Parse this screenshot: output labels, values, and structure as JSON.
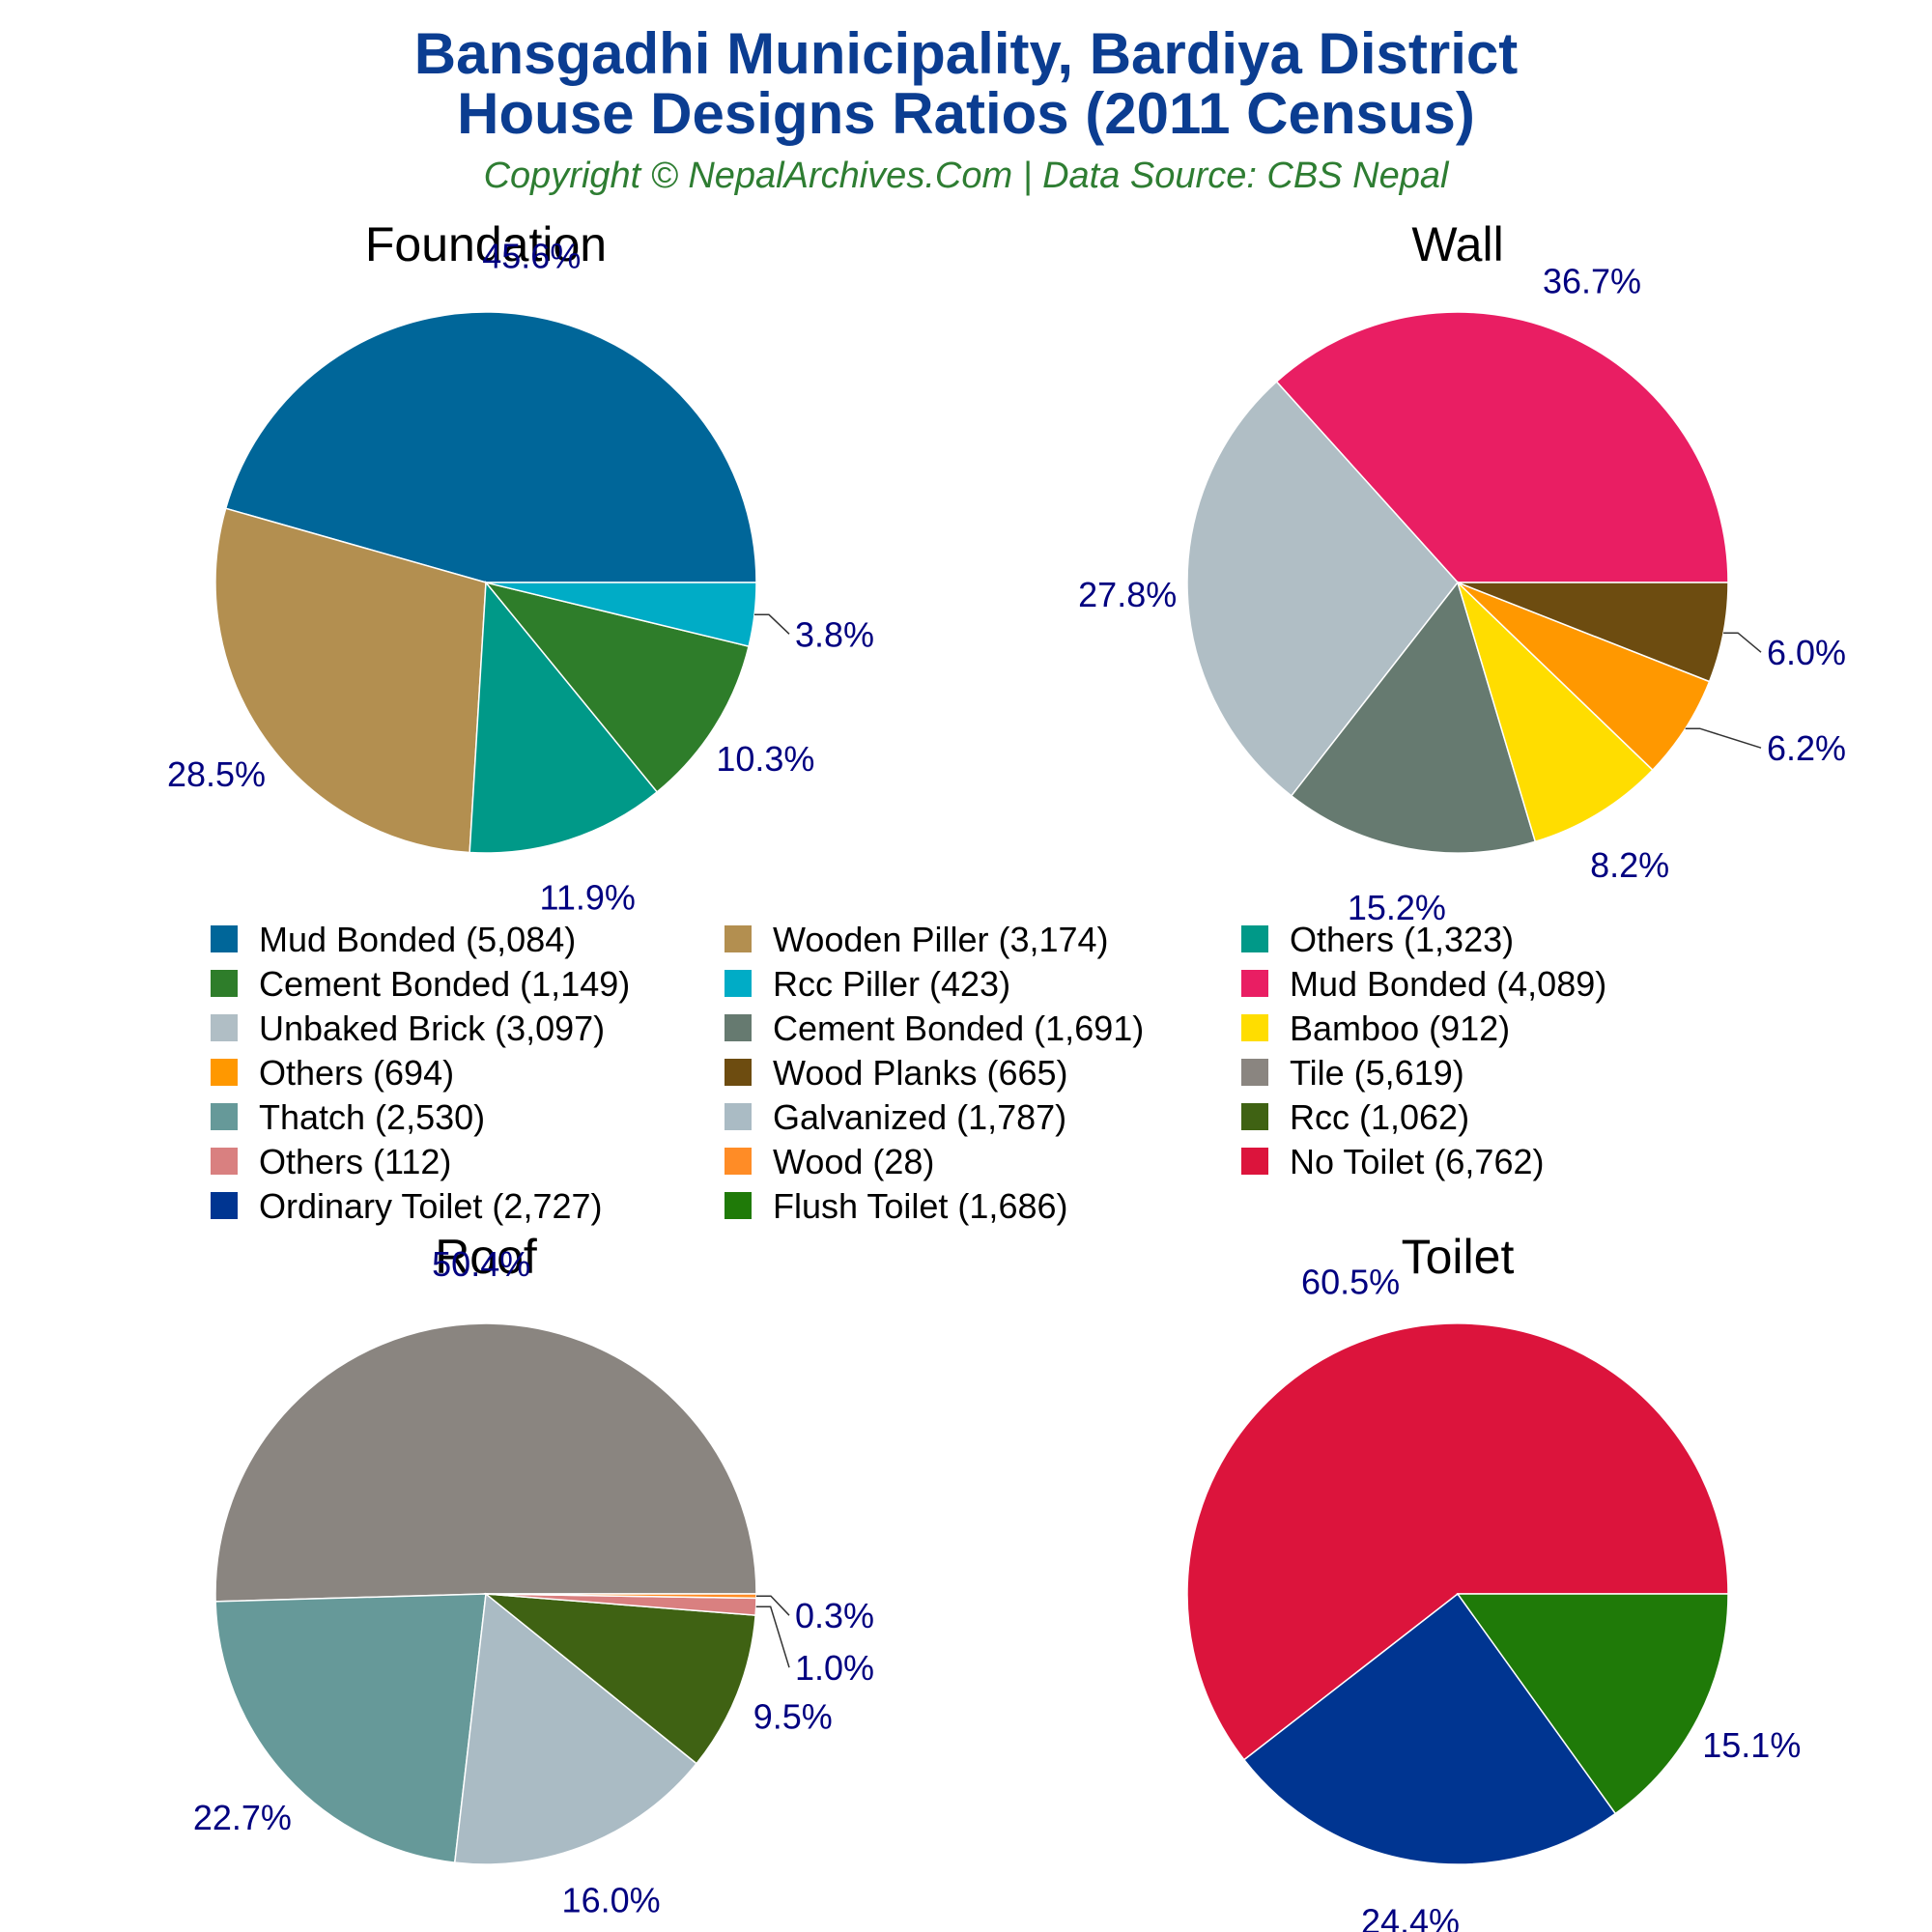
{
  "header": {
    "title_line1": "Bansgadhi Municipality, Bardiya District",
    "title_line2": "House Designs Ratios (2011 Census)",
    "subtitle": "Copyright © NepalArchives.Com | Data Source: CBS Nepal"
  },
  "chart_data": [
    {
      "type": "pie",
      "title": "Foundation",
      "slices": [
        {
          "label": "Mud Bonded",
          "value": 5084,
          "percent_label": "45.6%",
          "color": "#006699"
        },
        {
          "label": "Wooden Piller",
          "value": 3174,
          "percent_label": "28.5%",
          "color": "#b38f50"
        },
        {
          "label": "Others",
          "value": 1323,
          "percent_label": "11.9%",
          "color": "#009988"
        },
        {
          "label": "Cement Bonded",
          "value": 1149,
          "percent_label": "10.3%",
          "color": "#2e7d2a"
        },
        {
          "label": "Rcc Piller",
          "value": 423,
          "percent_label": "3.8%",
          "color": "#00acc6"
        }
      ]
    },
    {
      "type": "pie",
      "title": "Wall",
      "slices": [
        {
          "label": "Mud Bonded",
          "value": 4089,
          "percent_label": "36.7%",
          "color": "#e91e63"
        },
        {
          "label": "Unbaked Brick",
          "value": 3097,
          "percent_label": "27.8%",
          "color": "#b0bec5"
        },
        {
          "label": "Cement Bonded",
          "value": 1691,
          "percent_label": "15.2%",
          "color": "#667a70"
        },
        {
          "label": "Bamboo",
          "value": 912,
          "percent_label": "8.2%",
          "color": "#ffdd00"
        },
        {
          "label": "Others",
          "value": 694,
          "percent_label": "6.2%",
          "color": "#ff9800"
        },
        {
          "label": "Wood Planks",
          "value": 665,
          "percent_label": "6.0%",
          "color": "#6d4c10"
        }
      ]
    },
    {
      "type": "pie",
      "title": "Roof",
      "slices": [
        {
          "label": "Tile",
          "value": 5619,
          "percent_label": "50.4%",
          "color": "#8a8580"
        },
        {
          "label": "Thatch",
          "value": 2530,
          "percent_label": "22.7%",
          "color": "#669999"
        },
        {
          "label": "Galvanized",
          "value": 1787,
          "percent_label": "16.0%",
          "color": "#aabbc4"
        },
        {
          "label": "Rcc",
          "value": 1062,
          "percent_label": "9.5%",
          "color": "#3f6213"
        },
        {
          "label": "Others",
          "value": 112,
          "percent_label": "1.0%",
          "color": "#d98080"
        },
        {
          "label": "Wood",
          "value": 28,
          "percent_label": "0.3%",
          "color": "#ff8c26"
        }
      ]
    },
    {
      "type": "pie",
      "title": "Toilet",
      "slices": [
        {
          "label": "No Toilet",
          "value": 6762,
          "percent_label": "60.5%",
          "color": "#dc143c"
        },
        {
          "label": "Ordinary Toilet",
          "value": 2727,
          "percent_label": "24.4%",
          "color": "#003591"
        },
        {
          "label": "Flush Toilet",
          "value": 1686,
          "percent_label": "15.1%",
          "color": "#1f7a08"
        }
      ]
    }
  ],
  "legend": {
    "items": [
      {
        "text": "Mud Bonded (5,084)",
        "color": "#006699"
      },
      {
        "text": "Wooden Piller (3,174)",
        "color": "#b38f50"
      },
      {
        "text": "Others (1,323)",
        "color": "#009988"
      },
      {
        "text": "Cement Bonded (1,149)",
        "color": "#2e7d2a"
      },
      {
        "text": "Rcc Piller (423)",
        "color": "#00acc6"
      },
      {
        "text": "Mud Bonded (4,089)",
        "color": "#e91e63"
      },
      {
        "text": "Unbaked Brick (3,097)",
        "color": "#b0bec5"
      },
      {
        "text": "Cement Bonded (1,691)",
        "color": "#667a70"
      },
      {
        "text": "Bamboo (912)",
        "color": "#ffdd00"
      },
      {
        "text": "Others (694)",
        "color": "#ff9800"
      },
      {
        "text": "Wood Planks (665)",
        "color": "#6d4c10"
      },
      {
        "text": "Tile (5,619)",
        "color": "#8a8580"
      },
      {
        "text": "Thatch (2,530)",
        "color": "#669999"
      },
      {
        "text": "Galvanized (1,787)",
        "color": "#aabbc4"
      },
      {
        "text": "Rcc (1,062)",
        "color": "#3f6213"
      },
      {
        "text": "Others (112)",
        "color": "#d98080"
      },
      {
        "text": "Wood (28)",
        "color": "#ff8c26"
      },
      {
        "text": "No Toilet (6,762)",
        "color": "#dc143c"
      },
      {
        "text": "Ordinary Toilet (2,727)",
        "color": "#003591"
      },
      {
        "text": "Flush Toilet (1,686)",
        "color": "#1f7a08"
      }
    ]
  }
}
